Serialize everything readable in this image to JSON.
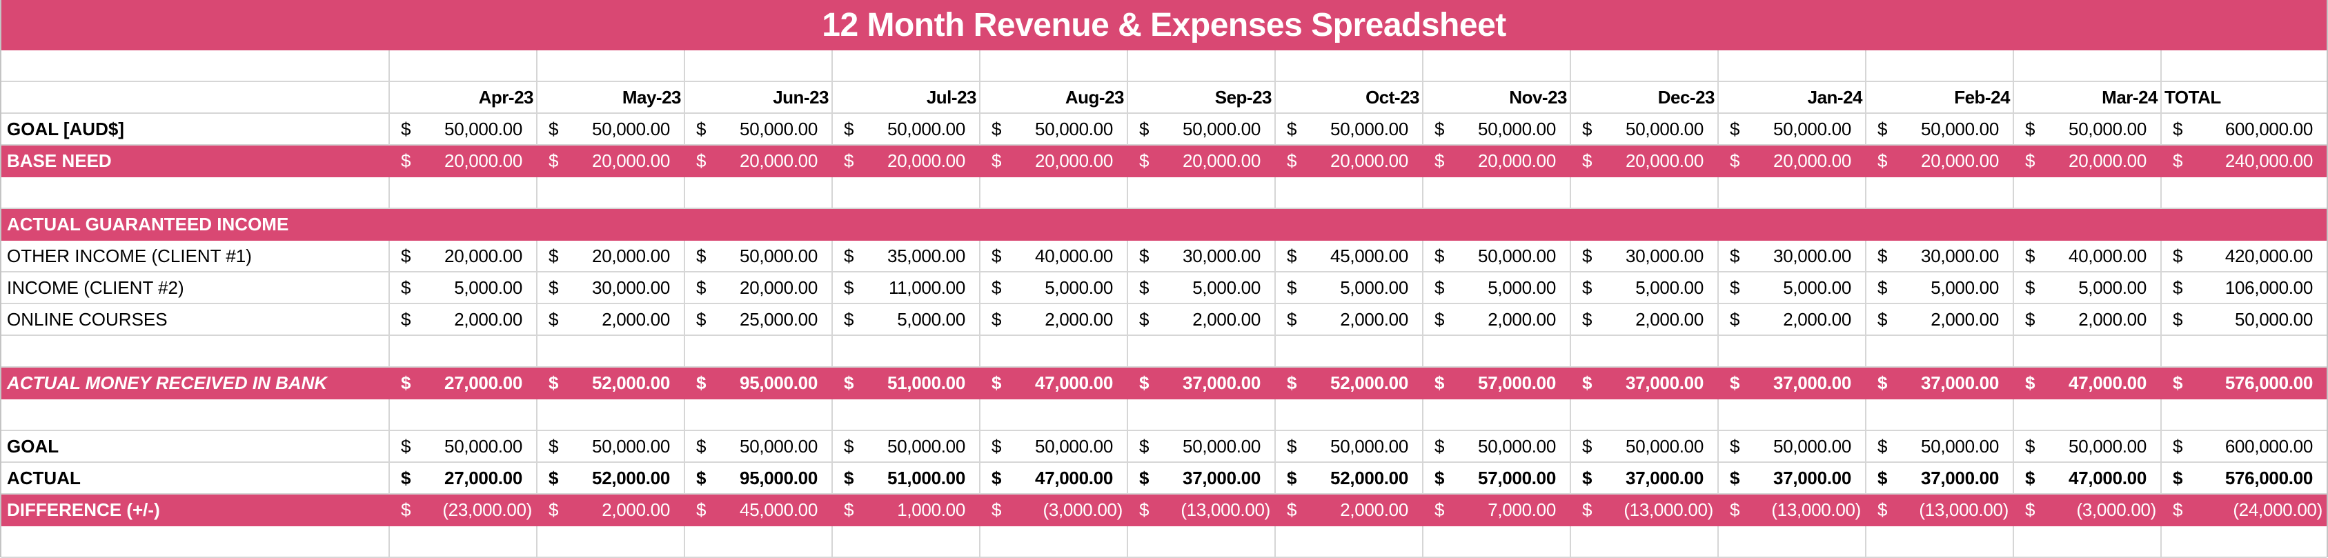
{
  "title": "12 Month Revenue & Expenses Spreadsheet",
  "colors": {
    "accent": "#d94873",
    "grid": "#d6d6d6",
    "text": "#000000",
    "accent_text": "#ffffff"
  },
  "header": {
    "months": [
      "Apr-23",
      "May-23",
      "Jun-23",
      "Jul-23",
      "Aug-23",
      "Sep-23",
      "Oct-23",
      "Nov-23",
      "Dec-23",
      "Jan-24",
      "Feb-24",
      "Mar-24"
    ],
    "total_label": "TOTAL"
  },
  "rows": {
    "goal_aud": {
      "label": "GOAL [AUD$]",
      "values": [
        "50,000.00",
        "50,000.00",
        "50,000.00",
        "50,000.00",
        "50,000.00",
        "50,000.00",
        "50,000.00",
        "50,000.00",
        "50,000.00",
        "50,000.00",
        "50,000.00",
        "50,000.00"
      ],
      "total": "600,000.00"
    },
    "base_need": {
      "label": "BASE NEED",
      "values": [
        "20,000.00",
        "20,000.00",
        "20,000.00",
        "20,000.00",
        "20,000.00",
        "20,000.00",
        "20,000.00",
        "20,000.00",
        "20,000.00",
        "20,000.00",
        "20,000.00",
        "20,000.00"
      ],
      "total": "240,000.00"
    },
    "section_income": {
      "label": "ACTUAL GUARANTEED INCOME"
    },
    "other_income_client1": {
      "label": "OTHER INCOME (CLIENT #1)",
      "values": [
        "20,000.00",
        "20,000.00",
        "50,000.00",
        "35,000.00",
        "40,000.00",
        "30,000.00",
        "45,000.00",
        "50,000.00",
        "30,000.00",
        "30,000.00",
        "30,000.00",
        "40,000.00"
      ],
      "total": "420,000.00"
    },
    "income_client2": {
      "label": "INCOME (CLIENT #2)",
      "values": [
        "5,000.00",
        "30,000.00",
        "20,000.00",
        "11,000.00",
        "5,000.00",
        "5,000.00",
        "5,000.00",
        "5,000.00",
        "5,000.00",
        "5,000.00",
        "5,000.00",
        "5,000.00"
      ],
      "total": "106,000.00"
    },
    "online_courses": {
      "label": "ONLINE COURSES",
      "values": [
        "2,000.00",
        "2,000.00",
        "25,000.00",
        "5,000.00",
        "2,000.00",
        "2,000.00",
        "2,000.00",
        "2,000.00",
        "2,000.00",
        "2,000.00",
        "2,000.00",
        "2,000.00"
      ],
      "total": "50,000.00"
    },
    "money_in_bank": {
      "label": "ACTUAL MONEY RECEIVED IN BANK",
      "values": [
        "27,000.00",
        "52,000.00",
        "95,000.00",
        "51,000.00",
        "47,000.00",
        "37,000.00",
        "52,000.00",
        "57,000.00",
        "37,000.00",
        "37,000.00",
        "37,000.00",
        "47,000.00"
      ],
      "total": "576,000.00"
    },
    "goal": {
      "label": "GOAL",
      "values": [
        "50,000.00",
        "50,000.00",
        "50,000.00",
        "50,000.00",
        "50,000.00",
        "50,000.00",
        "50,000.00",
        "50,000.00",
        "50,000.00",
        "50,000.00",
        "50,000.00",
        "50,000.00"
      ],
      "total": "600,000.00"
    },
    "actual": {
      "label": "ACTUAL",
      "values": [
        "27,000.00",
        "52,000.00",
        "95,000.00",
        "51,000.00",
        "47,000.00",
        "37,000.00",
        "52,000.00",
        "57,000.00",
        "37,000.00",
        "37,000.00",
        "37,000.00",
        "47,000.00"
      ],
      "total": "576,000.00"
    },
    "difference": {
      "label": "DIFFERENCE (+/-)",
      "values": [
        "(23,000.00)",
        "2,000.00",
        "45,000.00",
        "1,000.00",
        "(3,000.00)",
        "(13,000.00)",
        "2,000.00",
        "7,000.00",
        "(13,000.00)",
        "(13,000.00)",
        "(13,000.00)",
        "(3,000.00)"
      ],
      "total": "(24,000.00)"
    }
  },
  "currency_symbol": "$"
}
